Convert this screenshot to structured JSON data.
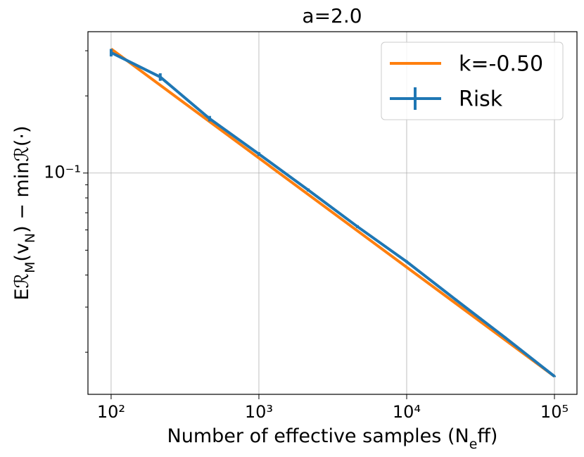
{
  "chart_data": {
    "type": "line",
    "title": "a=2.0",
    "xlabel": "Number of effective samples (N_eff)",
    "ylabel": "Eℛ_M(v_N) − minℛ(·)",
    "xlog": true,
    "ylog": true,
    "grid": true,
    "legend": "upper right",
    "xlim": [
      69.7,
      142000
    ],
    "ylim": [
      0.0137,
      0.356
    ],
    "xticks": [
      {
        "value": 100,
        "label": "10²"
      },
      {
        "value": 1000,
        "label": "10³"
      },
      {
        "value": 10000,
        "label": "10⁴"
      },
      {
        "value": 100000,
        "label": "10⁵"
      }
    ],
    "yticks": [
      {
        "value": 0.1,
        "label": "10⁻¹"
      }
    ],
    "yminorticks": [
      0.02,
      0.03,
      0.04,
      0.05,
      0.06,
      0.07,
      0.08,
      0.09,
      0.2,
      0.3
    ],
    "series": [
      {
        "name": "k=-0.50",
        "color": "#ff7f0e",
        "x": [
          100,
          100000
        ],
        "values": [
          0.305,
          0.0161
        ]
      },
      {
        "name": "Risk",
        "color": "#1f77b4",
        "x": [
          100,
          215,
          464,
          1000,
          2154,
          4642,
          10000,
          21544,
          46416,
          100000
        ],
        "values": [
          0.295,
          0.237,
          0.163,
          0.1186,
          0.0859,
          0.0618,
          0.0451,
          0.032,
          0.0228,
          0.0161
        ],
        "errors": [
          0.01,
          0.008,
          0.004,
          0.002,
          0.0012,
          0.0008,
          0.0005,
          0.0003,
          0.0002,
          0.0001
        ]
      }
    ]
  }
}
